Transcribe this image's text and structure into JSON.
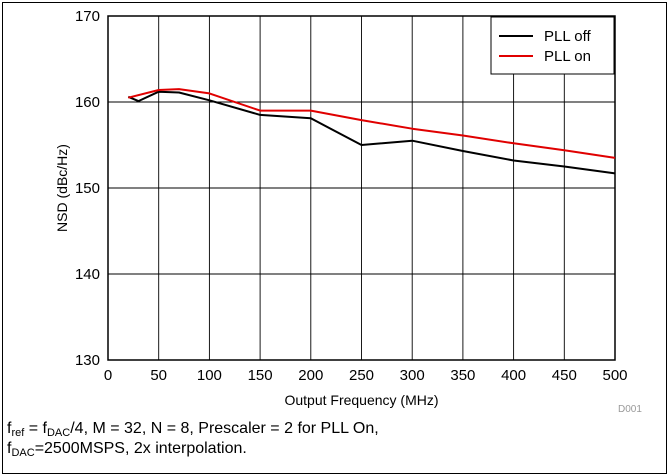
{
  "colors": {
    "pll_off": "#000000",
    "pll_on": "#e00000",
    "grid": "#000000",
    "background": "#ffffff",
    "id_tag": "#999999"
  },
  "chart_data": {
    "type": "line",
    "title": "",
    "xlabel": "Output Frequency (MHz)",
    "ylabel": "NSD (dBc/Hz)",
    "xlim": [
      0,
      500
    ],
    "ylim": [
      130,
      170
    ],
    "x_ticks": [
      0,
      50,
      100,
      150,
      200,
      250,
      300,
      350,
      400,
      450,
      500
    ],
    "y_ticks": [
      130,
      140,
      150,
      160,
      170
    ],
    "grid": true,
    "legend_position": "top-right",
    "series": [
      {
        "name": "PLL off",
        "color": "#000000",
        "x": [
          20,
          30,
          50,
          70,
          100,
          150,
          200,
          250,
          300,
          350,
          400,
          450,
          500
        ],
        "y": [
          160.6,
          160.1,
          161.2,
          161.1,
          160.2,
          158.5,
          158.1,
          155.0,
          155.5,
          154.3,
          153.2,
          152.5,
          151.7
        ]
      },
      {
        "name": "PLL on",
        "color": "#e00000",
        "x": [
          20,
          50,
          70,
          100,
          150,
          200,
          250,
          300,
          350,
          400,
          450,
          500
        ],
        "y": [
          160.5,
          161.4,
          161.5,
          161.0,
          159.0,
          159.0,
          157.9,
          156.9,
          156.1,
          155.2,
          154.4,
          153.5
        ]
      }
    ]
  },
  "figure_id": "D001",
  "caption": {
    "line1": {
      "f1": "f",
      "f1_sub": "ref",
      "eq1": " = f",
      "f2_sub": "DAC",
      "rest": "/4, M = 32, N = 8, Prescaler = 2 for PLL On,"
    },
    "line2": {
      "f": "f",
      "f_sub": "DAC",
      "rest": "=2500MSPS, 2x interpolation."
    }
  }
}
